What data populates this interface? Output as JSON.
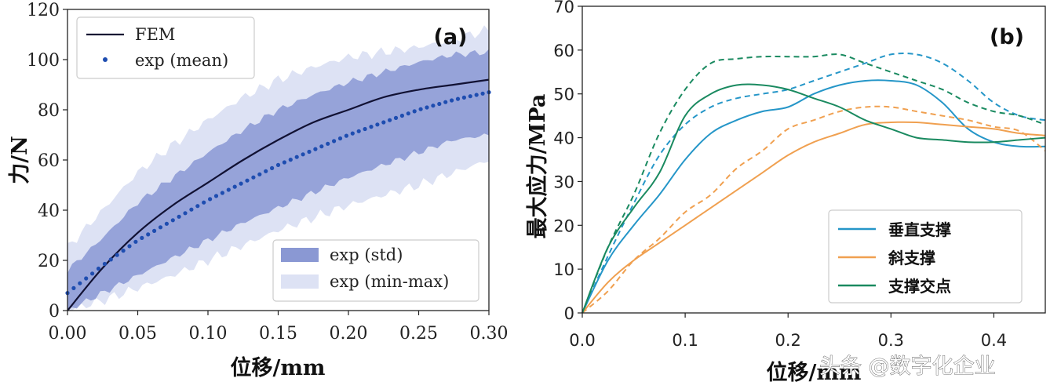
{
  "watermark": "头条 @数字化企业",
  "chart_data": [
    {
      "type": "line",
      "panel_label": "(a)",
      "xlabel": "位移/mm",
      "ylabel": "力/N",
      "xlim": [
        0,
        0.3
      ],
      "ylim": [
        0,
        120
      ],
      "xticks": [
        "0.00",
        "0.05",
        "0.10",
        "0.15",
        "0.20",
        "0.25",
        "0.30"
      ],
      "yticks": [
        "0",
        "20",
        "40",
        "60",
        "80",
        "100",
        "120"
      ],
      "legend_top": {
        "fem": "FEM",
        "mean": "exp (mean)"
      },
      "legend_bottom": {
        "std": "exp (std)",
        "minmax": "exp (min-max)"
      },
      "colors": {
        "fem": "#111133",
        "mean": "#1e4db0",
        "std": "#8a98d3",
        "minmax": "#dde2f4"
      },
      "x": [
        0,
        0.025,
        0.05,
        0.075,
        0.1,
        0.125,
        0.15,
        0.175,
        0.2,
        0.225,
        0.25,
        0.275,
        0.3
      ],
      "series": [
        {
          "name": "FEM",
          "values": [
            0,
            17,
            31,
            42,
            51,
            60,
            68,
            75,
            80,
            85,
            88,
            90,
            92
          ]
        },
        {
          "name": "exp (mean)",
          "values": [
            7,
            18,
            28,
            36,
            44,
            51,
            58,
            64,
            70,
            75,
            80,
            84,
            87
          ]
        },
        {
          "name": "exp (std) upper",
          "values": [
            16,
            29,
            43,
            53,
            63,
            72,
            80,
            86,
            91,
            95,
            99,
            102,
            103
          ]
        },
        {
          "name": "exp (std) lower",
          "values": [
            0,
            7,
            14,
            21,
            28,
            35,
            41,
            47,
            53,
            58,
            63,
            68,
            70
          ]
        },
        {
          "name": "exp (min-max) upper",
          "values": [
            25,
            40,
            55,
            66,
            76,
            85,
            92,
            97,
            101,
            103,
            105,
            108,
            112
          ]
        },
        {
          "name": "exp (min-max) lower",
          "values": [
            0,
            4,
            9,
            14,
            20,
            26,
            32,
            37,
            42,
            46,
            50,
            55,
            60
          ]
        }
      ]
    },
    {
      "type": "line",
      "panel_label": "(b)",
      "xlabel": "位移/mm",
      "ylabel": "最大应力/MPa",
      "xlim": [
        0,
        0.45
      ],
      "ylim": [
        0,
        70
      ],
      "xticks": [
        "0.0",
        "0.1",
        "0.2",
        "0.3",
        "0.4"
      ],
      "yticks": [
        "0",
        "10",
        "20",
        "30",
        "40",
        "50",
        "60",
        "70"
      ],
      "legend": [
        "垂直支撑",
        "斜支撑",
        "支撑交点"
      ],
      "colors": {
        "vertical": "#2596c8",
        "diagonal": "#f0a050",
        "joint": "#1a8a60"
      },
      "x": [
        0,
        0.025,
        0.05,
        0.075,
        0.1,
        0.125,
        0.15,
        0.175,
        0.2,
        0.225,
        0.25,
        0.275,
        0.3,
        0.325,
        0.35,
        0.375,
        0.4,
        0.425,
        0.45
      ],
      "series": [
        {
          "name": "垂直支撑",
          "style": "solid",
          "values": [
            0,
            12,
            20,
            27,
            35,
            41,
            44,
            46,
            47,
            50,
            52,
            53,
            53,
            52,
            48,
            42,
            39,
            38,
            38
          ]
        },
        {
          "name": "垂直支撑 (dashed)",
          "style": "dashed",
          "values": [
            0,
            13,
            25,
            36,
            43,
            47,
            49,
            50,
            51,
            53,
            55,
            57,
            59,
            59,
            57,
            53,
            48,
            45,
            44
          ]
        },
        {
          "name": "斜支撑",
          "style": "solid",
          "values": [
            0,
            7,
            12,
            16,
            20,
            24,
            28,
            32,
            36,
            39,
            41,
            43,
            43.5,
            43.5,
            43,
            42.5,
            42,
            41,
            40.5
          ]
        },
        {
          "name": "斜支撑 (dashed)",
          "style": "dashed",
          "values": [
            0,
            5,
            12,
            17,
            23,
            27,
            33,
            37,
            42,
            44,
            46,
            47,
            47,
            46,
            45,
            44,
            42.5,
            41.5,
            37
          ]
        },
        {
          "name": "支撑交点",
          "style": "solid",
          "values": [
            0,
            15,
            24,
            32,
            45,
            50,
            52,
            52,
            51,
            49,
            47,
            44,
            42,
            40,
            39.5,
            39,
            39,
            39.5,
            40
          ]
        },
        {
          "name": "支撑交点 (dashed)",
          "style": "dashed",
          "values": [
            0,
            15,
            27,
            41,
            51,
            57,
            58,
            58.5,
            58.5,
            58.5,
            59,
            57,
            55,
            53,
            51,
            48,
            46,
            45,
            43
          ]
        }
      ]
    }
  ]
}
